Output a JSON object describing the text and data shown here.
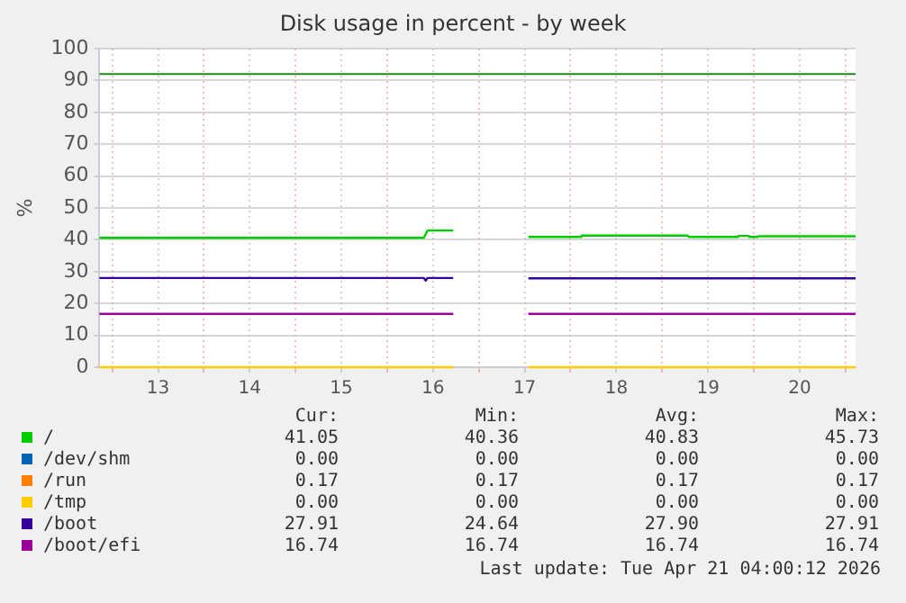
{
  "chart_data": {
    "type": "line",
    "title": "Disk usage in percent - by week",
    "ylabel": "%",
    "xlim": [
      12.86,
      21.11
    ],
    "xticks": [
      {
        "value": 13,
        "label": null
      },
      {
        "value": 13.5,
        "label": "13"
      },
      {
        "value": 14,
        "label": null
      },
      {
        "value": 14.5,
        "label": "14"
      },
      {
        "value": 15,
        "label": null
      },
      {
        "value": 15.5,
        "label": "15"
      },
      {
        "value": 16,
        "label": null
      },
      {
        "value": 16.5,
        "label": "16"
      },
      {
        "value": 17,
        "label": null
      },
      {
        "value": 17.5,
        "label": "17"
      },
      {
        "value": 18,
        "label": null
      },
      {
        "value": 18.5,
        "label": "18"
      },
      {
        "value": 19,
        "label": null
      },
      {
        "value": 19.5,
        "label": "19"
      },
      {
        "value": 20,
        "label": null
      },
      {
        "value": 20.5,
        "label": "20"
      },
      {
        "value": 21,
        "label": null
      }
    ],
    "ylim": [
      0,
      100
    ],
    "yticks": [
      0,
      10,
      20,
      30,
      40,
      50,
      60,
      70,
      80,
      90,
      100
    ],
    "grid": true,
    "legend": "bottom",
    "marker": "none",
    "line_style": "solid",
    "ref_lines": [
      {
        "axis": "y",
        "value": 92,
        "color": "#1a8a1a"
      }
    ],
    "series": [
      {
        "name": "/",
        "color": "#00cc00",
        "x": [
          12.86,
          16.4,
          16.44,
          16.72,
          17.0,
          17.54,
          18.11,
          18.12,
          19.28,
          19.29,
          19.82,
          19.83,
          19.94,
          19.95,
          20.04,
          20.05,
          21.11
        ],
        "values": [
          40.6,
          40.6,
          42.9,
          42.9,
          null,
          40.9,
          40.9,
          41.3,
          41.3,
          40.9,
          40.9,
          41.2,
          41.2,
          40.9,
          40.9,
          41.1,
          41.1
        ]
      },
      {
        "name": "/dev/shm",
        "color": "#0066b3"
      },
      {
        "name": "/run",
        "color": "#ff8000"
      },
      {
        "name": "/tmp",
        "color": "#ffcc00",
        "x": [
          12.86,
          16.72,
          17.0,
          17.54,
          21.11
        ],
        "values": [
          0,
          0,
          null,
          0,
          0
        ]
      },
      {
        "name": "/boot",
        "color": "#330099",
        "x": [
          12.86,
          16.4,
          16.42,
          16.44,
          16.72,
          17.0,
          17.54,
          21.11
        ],
        "values": [
          28,
          28,
          27.2,
          28,
          28,
          null,
          27.91,
          27.91
        ]
      },
      {
        "name": "/boot/efi",
        "color": "#990099",
        "x": [
          12.86,
          16.72,
          17.0,
          17.54,
          21.11
        ],
        "values": [
          16.74,
          16.74,
          null,
          16.74,
          16.74
        ]
      }
    ],
    "annotations": [
      "Cur:",
      "Min:",
      "Avg:",
      "Max:",
      "41.05",
      "40.36",
      "40.83",
      "45.73",
      "0.00",
      "0.00",
      "0.00",
      "0.00",
      "0.17",
      "0.17",
      "0.17",
      "0.17",
      "0.00",
      "0.00",
      "0.00",
      "0.00",
      "27.91",
      "24.64",
      "27.90",
      "27.91",
      "16.74",
      "16.74",
      "16.74",
      "16.74",
      "Last update: Tue Apr 21 04:00:12 2026"
    ]
  }
}
